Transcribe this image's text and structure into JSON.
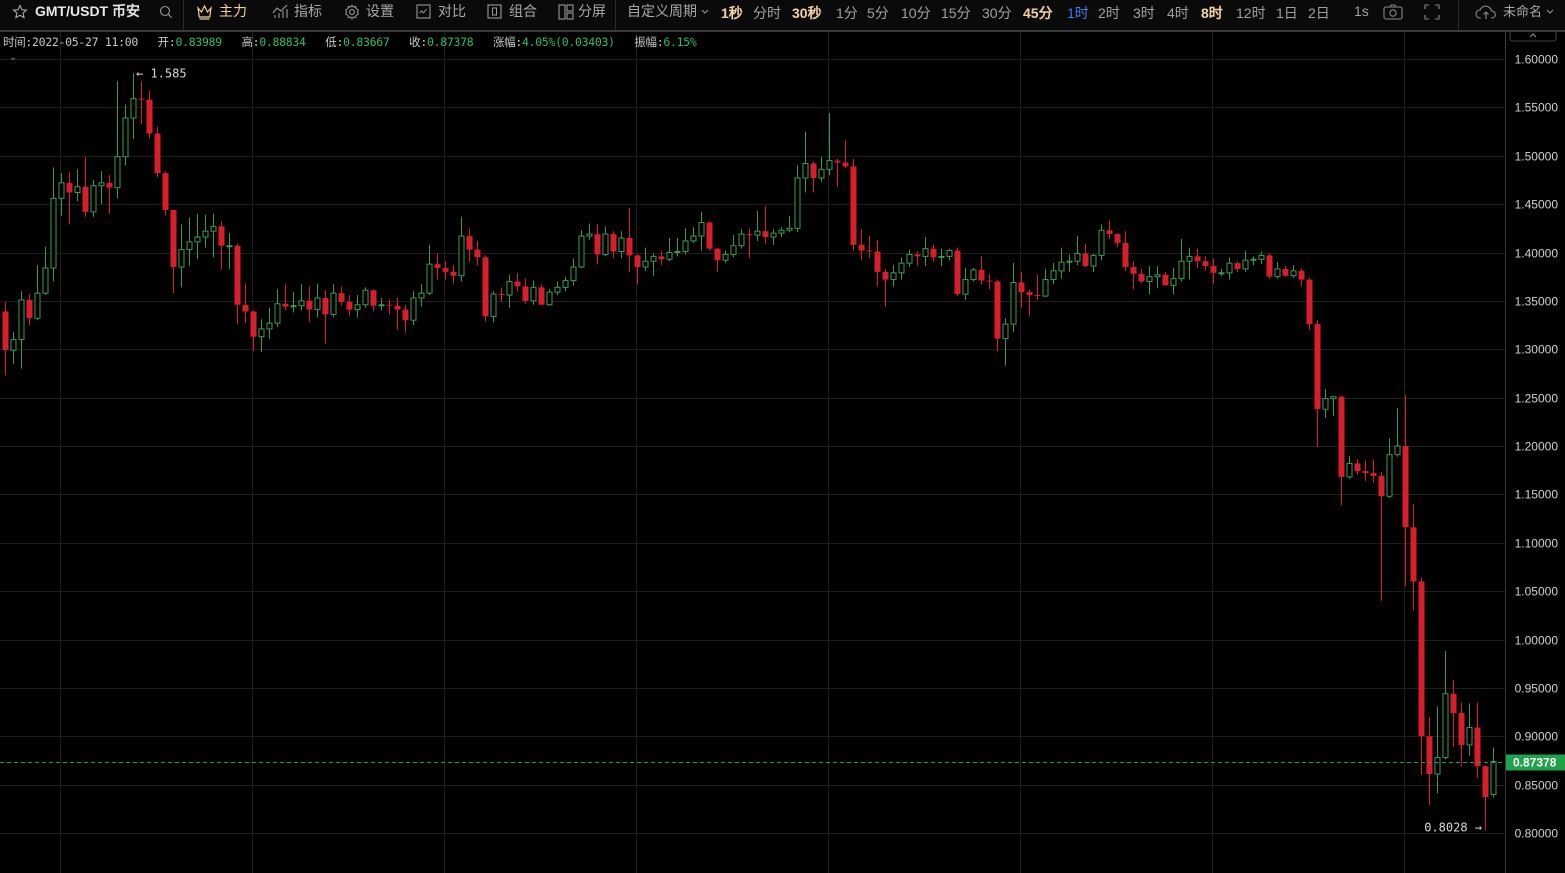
{
  "toolbar": {
    "symbol": "GMT/USDT 币安",
    "main_label": "主力",
    "indicators_label": "指标",
    "settings_label": "设置",
    "compare_label": "对比",
    "combine_label": "组合",
    "split_label": "分屏",
    "custom_period_label": "自定义周期",
    "intervals": [
      {
        "label": "1秒",
        "state": "favorite"
      },
      {
        "label": "分时",
        "state": "normal"
      },
      {
        "label": "30秒",
        "state": "favorite"
      },
      {
        "label": "1分",
        "state": "normal"
      },
      {
        "label": "5分",
        "state": "normal"
      },
      {
        "label": "10分",
        "state": "normal"
      },
      {
        "label": "15分",
        "state": "normal"
      },
      {
        "label": "30分",
        "state": "normal"
      },
      {
        "label": "45分",
        "state": "favorite"
      },
      {
        "label": "1时",
        "state": "selected"
      },
      {
        "label": "2时",
        "state": "normal"
      },
      {
        "label": "3时",
        "state": "normal"
      },
      {
        "label": "4时",
        "state": "normal"
      },
      {
        "label": "8时",
        "state": "favorite"
      },
      {
        "label": "12时",
        "state": "normal"
      },
      {
        "label": "1日",
        "state": "normal"
      },
      {
        "label": "2日",
        "state": "normal"
      }
    ],
    "tick_label": "1s",
    "layout_name": "未命名",
    "icons": [
      "star-icon",
      "search-icon",
      "crown-icon",
      "indicator-icon",
      "gear-icon",
      "compare-icon",
      "combine-icon",
      "split-screen-icon",
      "chevron-down-icon",
      "camera-icon",
      "fullscreen-icon",
      "cloud-upload-icon"
    ]
  },
  "info": {
    "time_label": "时间:",
    "time": "2022-05-27 11:00",
    "open_label": "开:",
    "open": "0.83989",
    "high_label": "高:",
    "high": "0.88834",
    "low_label": "低:",
    "low": "0.83667",
    "close_label": "收:",
    "close": "0.87378",
    "change_label": "涨幅:",
    "change": "4.05%(0.03403)",
    "amplitude_label": "振幅:",
    "amplitude": "6.15%"
  },
  "colors": {
    "up": "#3a9a55",
    "down": "#d81e2a",
    "last_price": "#1fa34a",
    "selected_interval": "#3d7fe6",
    "favorite_interval": "#f4d3a8"
  },
  "chart_data": {
    "type": "candlestick",
    "ylim": [
      0.8,
      1.6
    ],
    "y_ticks": [
      "1.60000",
      "1.55000",
      "1.50000",
      "1.45000",
      "1.40000",
      "1.35000",
      "1.30000",
      "1.25000",
      "1.20000",
      "1.15000",
      "1.10000",
      "1.05000",
      "1.00000",
      "0.95000",
      "0.90000",
      "0.85000",
      "0.80000"
    ],
    "grid": true,
    "last_price": "0.87378",
    "max_annotation": "1.585",
    "min_annotation": "0.8028",
    "ohlc": [
      [
        1.339,
        1.349,
        1.273,
        1.299
      ],
      [
        1.299,
        1.318,
        1.285,
        1.31
      ],
      [
        1.31,
        1.36,
        1.28,
        1.351
      ],
      [
        1.351,
        1.357,
        1.325,
        1.332
      ],
      [
        1.332,
        1.387,
        1.33,
        1.358
      ],
      [
        1.358,
        1.406,
        1.356,
        1.384
      ],
      [
        1.384,
        1.488,
        1.37,
        1.456
      ],
      [
        1.456,
        1.482,
        1.438,
        1.472
      ],
      [
        1.472,
        1.483,
        1.429,
        1.462
      ],
      [
        1.462,
        1.486,
        1.453,
        1.468
      ],
      [
        1.468,
        1.499,
        1.437,
        1.442
      ],
      [
        1.442,
        1.475,
        1.437,
        1.469
      ],
      [
        1.469,
        1.484,
        1.45,
        1.472
      ],
      [
        1.472,
        1.48,
        1.44,
        1.467
      ],
      [
        1.467,
        1.577,
        1.456,
        1.499
      ],
      [
        1.499,
        1.553,
        1.49,
        1.539
      ],
      [
        1.539,
        1.585,
        1.517,
        1.559
      ],
      [
        1.559,
        1.577,
        1.533,
        1.558
      ],
      [
        1.558,
        1.567,
        1.518,
        1.523
      ],
      [
        1.523,
        1.53,
        1.478,
        1.482
      ],
      [
        1.482,
        1.484,
        1.438,
        1.444
      ],
      [
        1.444,
        1.444,
        1.358,
        1.385
      ],
      [
        1.385,
        1.429,
        1.364,
        1.403
      ],
      [
        1.403,
        1.436,
        1.386,
        1.411
      ],
      [
        1.411,
        1.44,
        1.393,
        1.416
      ],
      [
        1.416,
        1.439,
        1.405,
        1.422
      ],
      [
        1.422,
        1.44,
        1.395,
        1.427
      ],
      [
        1.427,
        1.432,
        1.383,
        1.407
      ],
      [
        1.407,
        1.42,
        1.383,
        1.407
      ],
      [
        1.407,
        1.409,
        1.326,
        1.346
      ],
      [
        1.346,
        1.368,
        1.327,
        1.339
      ],
      [
        1.339,
        1.34,
        1.298,
        1.313
      ],
      [
        1.313,
        1.331,
        1.297,
        1.321
      ],
      [
        1.321,
        1.343,
        1.311,
        1.327
      ],
      [
        1.327,
        1.362,
        1.323,
        1.347
      ],
      [
        1.347,
        1.367,
        1.34,
        1.344
      ],
      [
        1.344,
        1.359,
        1.338,
        1.345
      ],
      [
        1.345,
        1.367,
        1.34,
        1.35
      ],
      [
        1.35,
        1.365,
        1.328,
        1.341
      ],
      [
        1.341,
        1.368,
        1.333,
        1.353
      ],
      [
        1.353,
        1.361,
        1.306,
        1.336
      ],
      [
        1.336,
        1.367,
        1.333,
        1.358
      ],
      [
        1.358,
        1.365,
        1.345,
        1.349
      ],
      [
        1.349,
        1.356,
        1.335,
        1.341
      ],
      [
        1.341,
        1.356,
        1.333,
        1.346
      ],
      [
        1.346,
        1.364,
        1.343,
        1.361
      ],
      [
        1.361,
        1.362,
        1.339,
        1.345
      ],
      [
        1.345,
        1.353,
        1.34,
        1.346
      ],
      [
        1.346,
        1.351,
        1.336,
        1.345
      ],
      [
        1.345,
        1.353,
        1.32,
        1.341
      ],
      [
        1.341,
        1.346,
        1.317,
        1.33
      ],
      [
        1.33,
        1.36,
        1.325,
        1.353
      ],
      [
        1.353,
        1.367,
        1.344,
        1.358
      ],
      [
        1.358,
        1.408,
        1.356,
        1.388
      ],
      [
        1.388,
        1.399,
        1.372,
        1.384
      ],
      [
        1.384,
        1.391,
        1.372,
        1.38
      ],
      [
        1.38,
        1.387,
        1.368,
        1.376
      ],
      [
        1.376,
        1.437,
        1.37,
        1.417
      ],
      [
        1.417,
        1.425,
        1.39,
        1.403
      ],
      [
        1.403,
        1.412,
        1.387,
        1.395
      ],
      [
        1.395,
        1.397,
        1.329,
        1.334
      ],
      [
        1.334,
        1.36,
        1.328,
        1.357
      ],
      [
        1.357,
        1.364,
        1.349,
        1.356
      ],
      [
        1.356,
        1.377,
        1.343,
        1.37
      ],
      [
        1.37,
        1.379,
        1.36,
        1.365
      ],
      [
        1.365,
        1.373,
        1.347,
        1.35
      ],
      [
        1.35,
        1.371,
        1.346,
        1.364
      ],
      [
        1.364,
        1.367,
        1.346,
        1.346
      ],
      [
        1.346,
        1.362,
        1.345,
        1.359
      ],
      [
        1.359,
        1.37,
        1.356,
        1.364
      ],
      [
        1.364,
        1.375,
        1.36,
        1.371
      ],
      [
        1.371,
        1.394,
        1.366,
        1.385
      ],
      [
        1.385,
        1.423,
        1.384,
        1.417
      ],
      [
        1.417,
        1.43,
        1.413,
        1.419
      ],
      [
        1.419,
        1.429,
        1.388,
        1.398
      ],
      [
        1.398,
        1.427,
        1.396,
        1.419
      ],
      [
        1.419,
        1.422,
        1.394,
        1.401
      ],
      [
        1.401,
        1.422,
        1.394,
        1.415
      ],
      [
        1.415,
        1.446,
        1.38,
        1.397
      ],
      [
        1.397,
        1.398,
        1.367,
        1.385
      ],
      [
        1.385,
        1.405,
        1.381,
        1.391
      ],
      [
        1.391,
        1.399,
        1.376,
        1.396
      ],
      [
        1.396,
        1.402,
        1.387,
        1.393
      ],
      [
        1.393,
        1.415,
        1.391,
        1.4
      ],
      [
        1.4,
        1.415,
        1.396,
        1.401
      ],
      [
        1.401,
        1.425,
        1.398,
        1.412
      ],
      [
        1.412,
        1.426,
        1.41,
        1.417
      ],
      [
        1.417,
        1.442,
        1.402,
        1.431
      ],
      [
        1.431,
        1.432,
        1.402,
        1.404
      ],
      [
        1.404,
        1.405,
        1.38,
        1.392
      ],
      [
        1.392,
        1.402,
        1.389,
        1.398
      ],
      [
        1.398,
        1.418,
        1.395,
        1.407
      ],
      [
        1.407,
        1.424,
        1.404,
        1.419
      ],
      [
        1.419,
        1.425,
        1.394,
        1.418
      ],
      [
        1.418,
        1.443,
        1.412,
        1.422
      ],
      [
        1.422,
        1.448,
        1.409,
        1.416
      ],
      [
        1.416,
        1.424,
        1.408,
        1.42
      ],
      [
        1.42,
        1.426,
        1.416,
        1.423
      ],
      [
        1.423,
        1.438,
        1.421,
        1.425
      ],
      [
        1.425,
        1.49,
        1.421,
        1.477
      ],
      [
        1.477,
        1.525,
        1.462,
        1.492
      ],
      [
        1.492,
        1.494,
        1.462,
        1.477
      ],
      [
        1.477,
        1.499,
        1.473,
        1.486
      ],
      [
        1.486,
        1.544,
        1.48,
        1.495
      ],
      [
        1.495,
        1.497,
        1.468,
        1.493
      ],
      [
        1.493,
        1.516,
        1.487,
        1.489
      ],
      [
        1.489,
        1.497,
        1.402,
        1.408
      ],
      [
        1.408,
        1.424,
        1.392,
        1.402
      ],
      [
        1.402,
        1.417,
        1.394,
        1.401
      ],
      [
        1.401,
        1.413,
        1.365,
        1.38
      ],
      [
        1.38,
        1.383,
        1.344,
        1.372
      ],
      [
        1.372,
        1.387,
        1.365,
        1.379
      ],
      [
        1.379,
        1.395,
        1.372,
        1.389
      ],
      [
        1.389,
        1.403,
        1.385,
        1.398
      ],
      [
        1.398,
        1.401,
        1.386,
        1.396
      ],
      [
        1.396,
        1.416,
        1.386,
        1.404
      ],
      [
        1.404,
        1.408,
        1.39,
        1.395
      ],
      [
        1.395,
        1.404,
        1.386,
        1.396
      ],
      [
        1.396,
        1.404,
        1.392,
        1.402
      ],
      [
        1.402,
        1.405,
        1.355,
        1.357
      ],
      [
        1.357,
        1.384,
        1.351,
        1.372
      ],
      [
        1.372,
        1.384,
        1.37,
        1.382
      ],
      [
        1.382,
        1.396,
        1.367,
        1.371
      ],
      [
        1.371,
        1.378,
        1.362,
        1.37
      ],
      [
        1.37,
        1.372,
        1.298,
        1.311
      ],
      [
        1.311,
        1.332,
        1.283,
        1.326
      ],
      [
        1.326,
        1.389,
        1.318,
        1.369
      ],
      [
        1.369,
        1.38,
        1.343,
        1.359
      ],
      [
        1.359,
        1.362,
        1.334,
        1.356
      ],
      [
        1.356,
        1.377,
        1.351,
        1.355
      ],
      [
        1.355,
        1.383,
        1.354,
        1.372
      ],
      [
        1.372,
        1.389,
        1.367,
        1.381
      ],
      [
        1.381,
        1.405,
        1.373,
        1.39
      ],
      [
        1.39,
        1.398,
        1.38,
        1.391
      ],
      [
        1.391,
        1.417,
        1.387,
        1.399
      ],
      [
        1.399,
        1.409,
        1.385,
        1.386
      ],
      [
        1.386,
        1.399,
        1.38,
        1.397
      ],
      [
        1.397,
        1.429,
        1.392,
        1.423
      ],
      [
        1.423,
        1.433,
        1.414,
        1.419
      ],
      [
        1.419,
        1.42,
        1.405,
        1.41
      ],
      [
        1.41,
        1.422,
        1.381,
        1.385
      ],
      [
        1.385,
        1.391,
        1.362,
        1.378
      ],
      [
        1.378,
        1.383,
        1.368,
        1.37
      ],
      [
        1.37,
        1.386,
        1.357,
        1.375
      ],
      [
        1.375,
        1.386,
        1.363,
        1.377
      ],
      [
        1.377,
        1.38,
        1.366,
        1.366
      ],
      [
        1.366,
        1.384,
        1.357,
        1.373
      ],
      [
        1.373,
        1.414,
        1.37,
        1.391
      ],
      [
        1.391,
        1.405,
        1.372,
        1.396
      ],
      [
        1.396,
        1.404,
        1.384,
        1.391
      ],
      [
        1.391,
        1.396,
        1.381,
        1.386
      ],
      [
        1.386,
        1.394,
        1.368,
        1.379
      ],
      [
        1.379,
        1.383,
        1.376,
        1.379
      ],
      [
        1.379,
        1.395,
        1.372,
        1.389
      ],
      [
        1.389,
        1.391,
        1.38,
        1.383
      ],
      [
        1.383,
        1.402,
        1.38,
        1.392
      ],
      [
        1.392,
        1.396,
        1.387,
        1.393
      ],
      [
        1.393,
        1.401,
        1.388,
        1.397
      ],
      [
        1.397,
        1.399,
        1.373,
        1.375
      ],
      [
        1.375,
        1.39,
        1.373,
        1.383
      ],
      [
        1.383,
        1.386,
        1.375,
        1.376
      ],
      [
        1.376,
        1.387,
        1.374,
        1.381
      ],
      [
        1.381,
        1.383,
        1.365,
        1.372
      ],
      [
        1.372,
        1.374,
        1.32,
        1.326
      ],
      [
        1.326,
        1.33,
        1.199,
        1.238
      ],
      [
        1.238,
        1.259,
        1.229,
        1.249
      ],
      [
        1.249,
        1.251,
        1.231,
        1.251
      ],
      [
        1.251,
        1.252,
        1.139,
        1.168
      ],
      [
        1.168,
        1.19,
        1.166,
        1.182
      ],
      [
        1.182,
        1.186,
        1.17,
        1.174
      ],
      [
        1.174,
        1.185,
        1.164,
        1.172
      ],
      [
        1.172,
        1.186,
        1.162,
        1.169
      ],
      [
        1.169,
        1.173,
        1.04,
        1.148
      ],
      [
        1.148,
        1.208,
        1.146,
        1.191
      ],
      [
        1.191,
        1.239,
        1.189,
        1.2
      ],
      [
        1.2,
        1.253,
        1.055,
        1.116
      ],
      [
        1.116,
        1.14,
        1.03,
        1.06
      ],
      [
        1.06,
        1.064,
        0.86,
        0.9
      ],
      [
        0.9,
        0.92,
        0.829,
        0.861
      ],
      [
        0.861,
        0.931,
        0.841,
        0.878
      ],
      [
        0.878,
        0.988,
        0.876,
        0.944
      ],
      [
        0.944,
        0.958,
        0.889,
        0.924
      ],
      [
        0.924,
        0.935,
        0.869,
        0.891
      ],
      [
        0.891,
        0.934,
        0.88,
        0.909
      ],
      [
        0.909,
        0.935,
        0.857,
        0.869
      ],
      [
        0.869,
        0.87,
        0.8028,
        0.837
      ],
      [
        0.83989,
        0.88834,
        0.83667,
        0.87378
      ]
    ]
  }
}
